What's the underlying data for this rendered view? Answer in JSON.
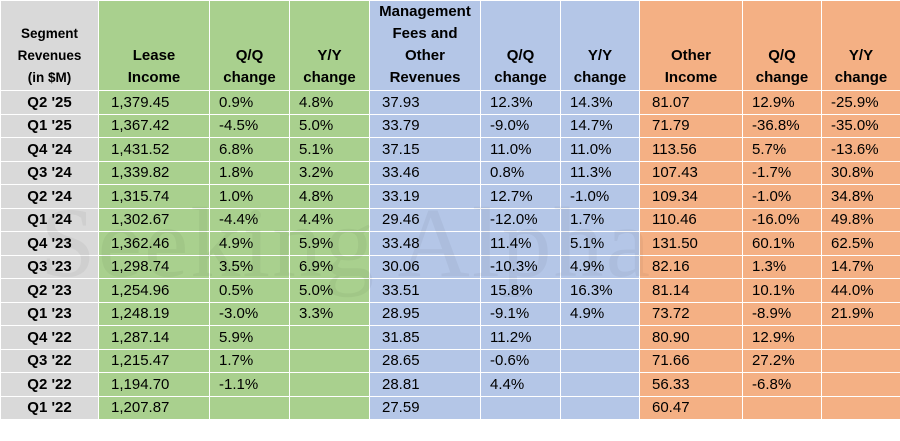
{
  "headers": {
    "segment": [
      "Segment",
      "Revenues",
      "(in $M)"
    ],
    "lease_income": [
      "Lease",
      "Income"
    ],
    "lease_qq": [
      "Q/Q",
      "change"
    ],
    "lease_yy": [
      "Y/Y",
      "change"
    ],
    "mgmt_fees": [
      "Management",
      "Fees and",
      "Other",
      "Revenues"
    ],
    "mgmt_qq": [
      "Q/Q",
      "change"
    ],
    "mgmt_yy": [
      "Y/Y",
      "change"
    ],
    "other_income": [
      "Other",
      "Income"
    ],
    "other_qq": [
      "Q/Q",
      "change"
    ],
    "other_yy": [
      "Y/Y",
      "change"
    ]
  },
  "rows": [
    {
      "quarter": "Q2 '25",
      "lease": "1,379.45",
      "lease_qq": "0.9%",
      "lease_yy": "4.8%",
      "mgmt": "37.93",
      "mgmt_qq": "12.3%",
      "mgmt_yy": "14.3%",
      "other": "81.07",
      "other_qq": "12.9%",
      "other_yy": "-25.9%"
    },
    {
      "quarter": "Q1 '25",
      "lease": "1,367.42",
      "lease_qq": "-4.5%",
      "lease_yy": "5.0%",
      "mgmt": "33.79",
      "mgmt_qq": "-9.0%",
      "mgmt_yy": "14.7%",
      "other": "71.79",
      "other_qq": "-36.8%",
      "other_yy": "-35.0%"
    },
    {
      "quarter": "Q4 '24",
      "lease": "1,431.52",
      "lease_qq": "6.8%",
      "lease_yy": "5.1%",
      "mgmt": "37.15",
      "mgmt_qq": "11.0%",
      "mgmt_yy": "11.0%",
      "other": "113.56",
      "other_qq": "5.7%",
      "other_yy": "-13.6%"
    },
    {
      "quarter": "Q3 '24",
      "lease": "1,339.82",
      "lease_qq": "1.8%",
      "lease_yy": "3.2%",
      "mgmt": "33.46",
      "mgmt_qq": "0.8%",
      "mgmt_yy": "11.3%",
      "other": "107.43",
      "other_qq": "-1.7%",
      "other_yy": "30.8%"
    },
    {
      "quarter": "Q2 '24",
      "lease": "1,315.74",
      "lease_qq": "1.0%",
      "lease_yy": "4.8%",
      "mgmt": "33.19",
      "mgmt_qq": "12.7%",
      "mgmt_yy": "-1.0%",
      "other": "109.34",
      "other_qq": "-1.0%",
      "other_yy": "34.8%"
    },
    {
      "quarter": "Q1 '24",
      "lease": "1,302.67",
      "lease_qq": "-4.4%",
      "lease_yy": "4.4%",
      "mgmt": "29.46",
      "mgmt_qq": "-12.0%",
      "mgmt_yy": "1.7%",
      "other": "110.46",
      "other_qq": "-16.0%",
      "other_yy": "49.8%"
    },
    {
      "quarter": "Q4 '23",
      "lease": "1,362.46",
      "lease_qq": "4.9%",
      "lease_yy": "5.9%",
      "mgmt": "33.48",
      "mgmt_qq": "11.4%",
      "mgmt_yy": "5.1%",
      "other": "131.50",
      "other_qq": "60.1%",
      "other_yy": "62.5%"
    },
    {
      "quarter": "Q3 '23",
      "lease": "1,298.74",
      "lease_qq": "3.5%",
      "lease_yy": "6.9%",
      "mgmt": "30.06",
      "mgmt_qq": "-10.3%",
      "mgmt_yy": "4.9%",
      "other": "82.16",
      "other_qq": "1.3%",
      "other_yy": "14.7%"
    },
    {
      "quarter": "Q2 '23",
      "lease": "1,254.96",
      "lease_qq": "0.5%",
      "lease_yy": "5.0%",
      "mgmt": "33.51",
      "mgmt_qq": "15.8%",
      "mgmt_yy": "16.3%",
      "other": "81.14",
      "other_qq": "10.1%",
      "other_yy": "44.0%"
    },
    {
      "quarter": "Q1 '23",
      "lease": "1,248.19",
      "lease_qq": "-3.0%",
      "lease_yy": "3.3%",
      "mgmt": "28.95",
      "mgmt_qq": "-9.1%",
      "mgmt_yy": "4.9%",
      "other": "73.72",
      "other_qq": "-8.9%",
      "other_yy": "21.9%"
    },
    {
      "quarter": "Q4 '22",
      "lease": "1,287.14",
      "lease_qq": "5.9%",
      "lease_yy": "",
      "mgmt": "31.85",
      "mgmt_qq": "11.2%",
      "mgmt_yy": "",
      "other": "80.90",
      "other_qq": "12.9%",
      "other_yy": ""
    },
    {
      "quarter": "Q3 '22",
      "lease": "1,215.47",
      "lease_qq": "1.7%",
      "lease_yy": "",
      "mgmt": "28.65",
      "mgmt_qq": "-0.6%",
      "mgmt_yy": "",
      "other": "71.66",
      "other_qq": "27.2%",
      "other_yy": ""
    },
    {
      "quarter": "Q2 '22",
      "lease": "1,194.70",
      "lease_qq": "-1.1%",
      "lease_yy": "",
      "mgmt": "28.81",
      "mgmt_qq": "4.4%",
      "mgmt_yy": "",
      "other": "56.33",
      "other_qq": "-6.8%",
      "other_yy": ""
    },
    {
      "quarter": "Q1 '22",
      "lease": "1,207.87",
      "lease_qq": "",
      "lease_yy": "",
      "mgmt": "27.59",
      "mgmt_qq": "",
      "mgmt_yy": "",
      "other": "60.47",
      "other_qq": "",
      "other_yy": ""
    }
  ],
  "watermark": "Seeking Alpha",
  "colors": {
    "segment_bg": "#d9d9d9",
    "lease_bg": "#a9d08e",
    "mgmt_bg": "#b4c6e7",
    "other_bg": "#f4b084"
  }
}
